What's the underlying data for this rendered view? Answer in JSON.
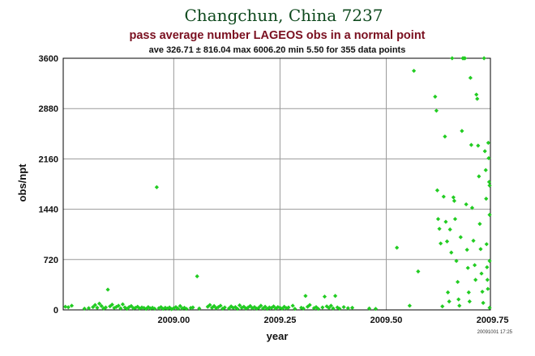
{
  "chart_data": {
    "type": "scatter",
    "title": "Changchun, China 7237",
    "subtitle": "pass average number LAGEOS obs in a normal point",
    "stats": "ave 326.71 ± 816.04 max 6006.20 min 5.50 for 355 data points",
    "xlabel": "year",
    "ylabel": "obs/npt",
    "xlim": [
      2008.74,
      2009.745
    ],
    "ylim": [
      0,
      3600
    ],
    "xticks": [
      2009.0,
      2009.25,
      2009.5,
      2009.75
    ],
    "xtick_labels": [
      "2009.00",
      "2009.25",
      "2009.50",
      "2009.75"
    ],
    "yticks": [
      0,
      720,
      1440,
      2160,
      2880,
      3600
    ],
    "ytick_labels": [
      "0",
      "720",
      "1440",
      "2160",
      "2880",
      "3600"
    ],
    "grid": true,
    "timestamp": "20091001 17:25",
    "marker_color": "#22cc22",
    "series": [
      {
        "points": [
          [
            2008.745,
            45
          ],
          [
            2008.752,
            38
          ],
          [
            2008.76,
            60
          ],
          [
            2008.79,
            18
          ],
          [
            2008.8,
            25
          ],
          [
            2008.81,
            40
          ],
          [
            2008.815,
            70
          ],
          [
            2008.82,
            30
          ],
          [
            2008.825,
            90
          ],
          [
            2008.83,
            55
          ],
          [
            2008.835,
            20
          ],
          [
            2008.84,
            35
          ],
          [
            2008.845,
            290
          ],
          [
            2008.85,
            50
          ],
          [
            2008.855,
            75
          ],
          [
            2008.86,
            28
          ],
          [
            2008.865,
            42
          ],
          [
            2008.87,
            60
          ],
          [
            2008.875,
            22
          ],
          [
            2008.88,
            80
          ],
          [
            2008.885,
            35
          ],
          [
            2008.89,
            15
          ],
          [
            2008.895,
            40
          ],
          [
            2008.9,
            55
          ],
          [
            2008.905,
            25
          ],
          [
            2008.91,
            30
          ],
          [
            2008.915,
            45
          ],
          [
            2008.92,
            20
          ],
          [
            2008.925,
            35
          ],
          [
            2008.93,
            28
          ],
          [
            2008.935,
            15
          ],
          [
            2008.94,
            40
          ],
          [
            2008.945,
            22
          ],
          [
            2008.95,
            30
          ],
          [
            2008.955,
            18
          ],
          [
            2008.96,
            1755
          ],
          [
            2008.965,
            25
          ],
          [
            2008.97,
            40
          ],
          [
            2008.975,
            15
          ],
          [
            2008.98,
            30
          ],
          [
            2008.985,
            20
          ],
          [
            2008.99,
            35
          ],
          [
            2008.995,
            12
          ],
          [
            2009.0,
            25
          ],
          [
            2009.005,
            40
          ],
          [
            2009.01,
            18
          ],
          [
            2009.015,
            55
          ],
          [
            2009.02,
            22
          ],
          [
            2009.025,
            30
          ],
          [
            2009.03,
            15
          ],
          [
            2009.04,
            28
          ],
          [
            2009.045,
            35
          ],
          [
            2009.055,
            480
          ],
          [
            2009.06,
            20
          ],
          [
            2009.08,
            45
          ],
          [
            2009.085,
            70
          ],
          [
            2009.09,
            30
          ],
          [
            2009.095,
            55
          ],
          [
            2009.1,
            25
          ],
          [
            2009.105,
            40
          ],
          [
            2009.11,
            60
          ],
          [
            2009.115,
            18
          ],
          [
            2009.12,
            35
          ],
          [
            2009.13,
            22
          ],
          [
            2009.135,
            50
          ],
          [
            2009.14,
            28
          ],
          [
            2009.145,
            40
          ],
          [
            2009.15,
            15
          ],
          [
            2009.155,
            65
          ],
          [
            2009.16,
            30
          ],
          [
            2009.165,
            45
          ],
          [
            2009.17,
            20
          ],
          [
            2009.175,
            35
          ],
          [
            2009.18,
            55
          ],
          [
            2009.185,
            25
          ],
          [
            2009.19,
            40
          ],
          [
            2009.195,
            18
          ],
          [
            2009.2,
            30
          ],
          [
            2009.205,
            60
          ],
          [
            2009.21,
            22
          ],
          [
            2009.215,
            45
          ],
          [
            2009.22,
            15
          ],
          [
            2009.225,
            35
          ],
          [
            2009.23,
            28
          ],
          [
            2009.235,
            50
          ],
          [
            2009.24,
            20
          ],
          [
            2009.245,
            40
          ],
          [
            2009.25,
            30
          ],
          [
            2009.255,
            18
          ],
          [
            2009.26,
            45
          ],
          [
            2009.265,
            25
          ],
          [
            2009.27,
            35
          ],
          [
            2009.28,
            60
          ],
          [
            2009.285,
            15
          ],
          [
            2009.3,
            30
          ],
          [
            2009.305,
            20
          ],
          [
            2009.31,
            200
          ],
          [
            2009.315,
            45
          ],
          [
            2009.32,
            70
          ],
          [
            2009.33,
            25
          ],
          [
            2009.335,
            40
          ],
          [
            2009.34,
            15
          ],
          [
            2009.35,
            35
          ],
          [
            2009.355,
            190
          ],
          [
            2009.36,
            50
          ],
          [
            2009.365,
            28
          ],
          [
            2009.37,
            60
          ],
          [
            2009.375,
            22
          ],
          [
            2009.38,
            200
          ],
          [
            2009.385,
            35
          ],
          [
            2009.39,
            18
          ],
          [
            2009.4,
            40
          ],
          [
            2009.41,
            25
          ],
          [
            2009.42,
            30
          ],
          [
            2009.46,
            20
          ],
          [
            2009.475,
            15
          ],
          [
            2009.525,
            890
          ],
          [
            2009.555,
            60
          ],
          [
            2009.565,
            3420
          ],
          [
            2009.575,
            550
          ],
          [
            2009.615,
            3050
          ],
          [
            2009.618,
            2850
          ],
          [
            2009.62,
            1710
          ],
          [
            2009.622,
            1300
          ],
          [
            2009.625,
            1160
          ],
          [
            2009.628,
            950
          ],
          [
            2009.632,
            50
          ],
          [
            2009.635,
            1620
          ],
          [
            2009.638,
            2480
          ],
          [
            2009.64,
            1260
          ],
          [
            2009.643,
            980
          ],
          [
            2009.645,
            250
          ],
          [
            2009.648,
            120
          ],
          [
            2009.65,
            1150
          ],
          [
            2009.653,
            820
          ],
          [
            2009.655,
            3600
          ],
          [
            2009.658,
            1610
          ],
          [
            2009.66,
            1560
          ],
          [
            2009.662,
            1300
          ],
          [
            2009.665,
            700
          ],
          [
            2009.668,
            400
          ],
          [
            2009.67,
            150
          ],
          [
            2009.672,
            60
          ],
          [
            2009.675,
            1040
          ],
          [
            2009.678,
            2560
          ],
          [
            2009.68,
            3600
          ],
          [
            2009.682,
            3600
          ],
          [
            2009.685,
            3600
          ],
          [
            2009.688,
            1510
          ],
          [
            2009.69,
            860
          ],
          [
            2009.692,
            600
          ],
          [
            2009.694,
            250
          ],
          [
            2009.696,
            120
          ],
          [
            2009.698,
            3320
          ],
          [
            2009.7,
            2360
          ],
          [
            2009.702,
            1460
          ],
          [
            2009.705,
            990
          ],
          [
            2009.708,
            640
          ],
          [
            2009.71,
            430
          ],
          [
            2009.712,
            3080
          ],
          [
            2009.714,
            3020
          ],
          [
            2009.716,
            2350
          ],
          [
            2009.718,
            1910
          ],
          [
            2009.72,
            1230
          ],
          [
            2009.722,
            870
          ],
          [
            2009.724,
            520
          ],
          [
            2009.726,
            260
          ],
          [
            2009.728,
            100
          ],
          [
            2009.73,
            3600
          ],
          [
            2009.732,
            2270
          ],
          [
            2009.734,
            2000
          ],
          [
            2009.735,
            1590
          ],
          [
            2009.736,
            940
          ],
          [
            2009.737,
            610
          ],
          [
            2009.738,
            430
          ],
          [
            2009.739,
            300
          ],
          [
            2009.74,
            2390
          ],
          [
            2009.741,
            2170
          ],
          [
            2009.742,
            1830
          ],
          [
            2009.743,
            1780
          ],
          [
            2009.744,
            1360
          ],
          [
            2009.745,
            700
          ],
          [
            2009.745,
            30
          ]
        ]
      }
    ]
  }
}
